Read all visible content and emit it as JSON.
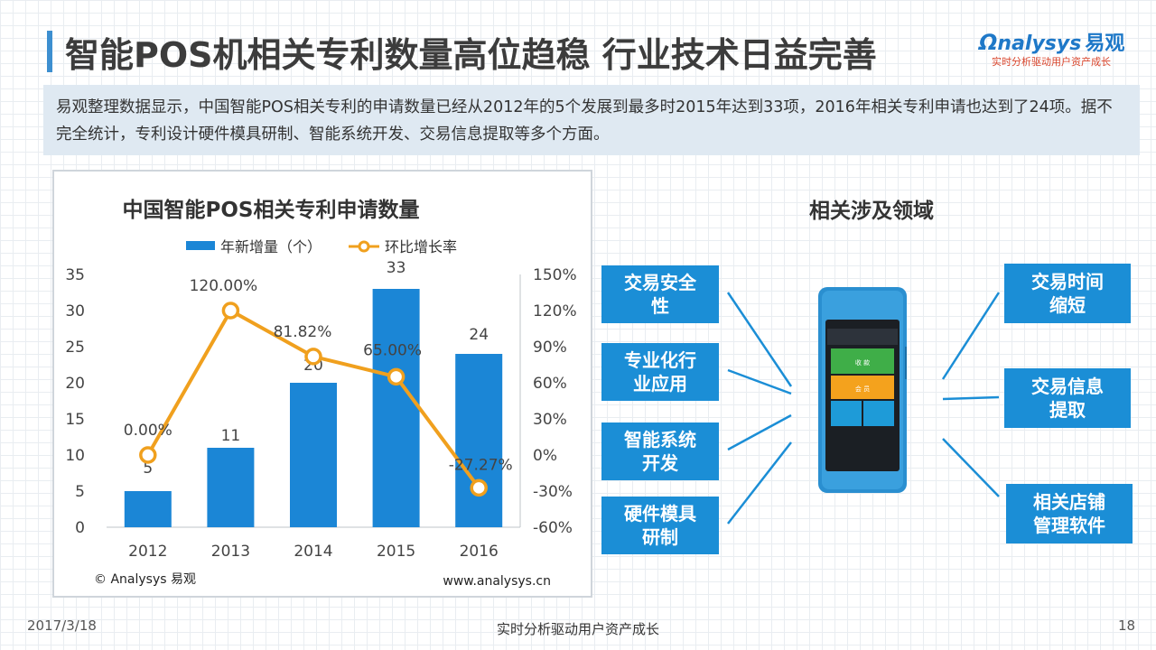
{
  "header": {
    "title": "智能POS机相关专利数量高位趋稳 行业技术日益完善",
    "logo_en": "nalysys",
    "logo_cn": "易观",
    "logo_tagline": "实时分析驱动用户资产成长"
  },
  "summary": {
    "text": "易观整理数据显示，中国智能POS相关专利的申请数量已经从2012年的5个发展到最多时2015年达到33项，2016年相关专利申请也达到了24项。据不完全统计，专利设计硬件模具研制、智能系统开发、交易信息提取等多个方面。"
  },
  "chart_data": {
    "type": "bar",
    "title": "中国智能POS相关专利申请数量",
    "categories": [
      "2012",
      "2013",
      "2014",
      "2015",
      "2016"
    ],
    "series": [
      {
        "name": "年新增量（个）",
        "type": "bar",
        "axis": "left",
        "values": [
          5,
          11,
          20,
          33,
          24
        ],
        "labels": [
          "5",
          "11",
          "20",
          "33",
          "24"
        ]
      },
      {
        "name": "环比增长率",
        "type": "line",
        "axis": "right",
        "values": [
          0.0,
          120.0,
          81.82,
          65.0,
          -27.27
        ],
        "labels": [
          "0.00%",
          "120.00%",
          "81.82%",
          "65.00%",
          "-27.27%"
        ]
      }
    ],
    "ylim": [
      0,
      35
    ],
    "yticks": [
      "0",
      "5",
      "10",
      "15",
      "20",
      "25",
      "30",
      "35"
    ],
    "y2lim": [
      -60,
      150
    ],
    "y2ticks": [
      "-60%",
      "-30%",
      "0%",
      "30%",
      "60%",
      "90%",
      "120%",
      "150%"
    ],
    "legend_position": "top",
    "grid": false,
    "source_left": "© Analysys 易观",
    "source_right": "www.analysys.cn",
    "colors": {
      "bar": "#1b86d6",
      "line": "#f0a01e"
    }
  },
  "right_panel": {
    "title": "相关涉及领域",
    "left_items": [
      "交易安全性",
      "专业化行业应用",
      "智能系统开发",
      "硬件模具研制"
    ],
    "right_items": [
      "交易时间缩短",
      "交易信息提取",
      "相关店铺管理软件"
    ]
  },
  "device": {
    "screen_items": [
      "收 款",
      "会 员"
    ]
  },
  "footer": {
    "date": "2017/3/18",
    "tagline": "实时分析驱动用户资产成长",
    "page": "18"
  },
  "colors": {
    "accent": "#1b8ed6",
    "summary_bg": "#dfe9f2"
  }
}
